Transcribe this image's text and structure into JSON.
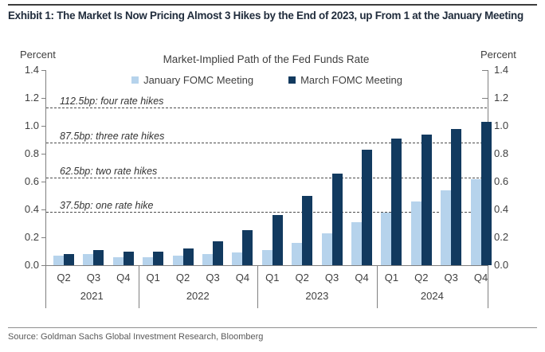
{
  "page": {
    "title": "Exhibit 1: The Market Is Now Pricing Almost 3 Hikes by the End of 2023, up From 1 at the January Meeting",
    "source": "Source: Goldman Sachs Global Investment Research, Bloomberg"
  },
  "chart_data": {
    "type": "bar",
    "title": "Market-Implied Path of the Fed Funds Rate",
    "y_axis_label_left": "Percent",
    "y_axis_label_right": "Percent",
    "ylim": [
      0,
      1.4
    ],
    "ytick_step": 0.2,
    "yticks": [
      "0.0",
      "0.2",
      "0.4",
      "0.6",
      "0.8",
      "1.0",
      "1.2",
      "1.4"
    ],
    "grid": "off",
    "legend_position": "top-center",
    "categories": [
      "Q2",
      "Q3",
      "Q4",
      "Q1",
      "Q2",
      "Q3",
      "Q4",
      "Q1",
      "Q2",
      "Q3",
      "Q4",
      "Q1",
      "Q2",
      "Q3",
      "Q4"
    ],
    "year_groups": [
      {
        "label": "2021",
        "count": 3
      },
      {
        "label": "2022",
        "count": 4
      },
      {
        "label": "2023",
        "count": 4
      },
      {
        "label": "2024",
        "count": 4
      }
    ],
    "series": [
      {
        "name": "January FOMC Meeting",
        "color": "#b6d3ec",
        "values": [
          0.07,
          0.08,
          0.06,
          0.06,
          0.07,
          0.08,
          0.09,
          0.11,
          0.16,
          0.23,
          0.31,
          0.38,
          0.46,
          0.54,
          0.62
        ]
      },
      {
        "name": "March FOMC Meeting",
        "color": "#123a5f",
        "values": [
          0.08,
          0.11,
          0.1,
          0.1,
          0.12,
          0.17,
          0.25,
          0.36,
          0.5,
          0.66,
          0.83,
          0.91,
          0.94,
          0.98,
          1.03
        ]
      }
    ],
    "reference_lines": [
      {
        "value": 1.125,
        "label": "112.5bp: four rate hikes"
      },
      {
        "value": 0.875,
        "label": "87.5bp: three rate hikes"
      },
      {
        "value": 0.625,
        "label": "62.5bp: two rate hikes"
      },
      {
        "value": 0.375,
        "label": "37.5bp: one rate hike"
      }
    ],
    "colors": {
      "axis": "#808080",
      "dashed_line": "#4d4d4d",
      "text": "#3f3f3f",
      "title": "#202c3c"
    }
  }
}
